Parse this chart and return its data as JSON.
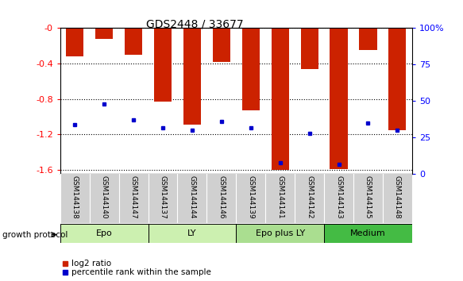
{
  "title": "GDS2448 / 33677",
  "samples": [
    "GSM144138",
    "GSM144140",
    "GSM144147",
    "GSM144137",
    "GSM144144",
    "GSM144146",
    "GSM144139",
    "GSM144141",
    "GSM144142",
    "GSM144143",
    "GSM144145",
    "GSM144148"
  ],
  "log2_ratio": [
    -0.32,
    -0.12,
    -0.3,
    -0.83,
    -1.09,
    -0.38,
    -0.93,
    -1.6,
    -0.46,
    -1.59,
    -0.25,
    -1.15
  ],
  "percentile_rank": [
    0.34,
    0.48,
    0.37,
    0.32,
    0.3,
    0.36,
    0.32,
    0.08,
    0.28,
    0.07,
    0.35,
    0.3
  ],
  "groups": [
    {
      "label": "Epo",
      "indices": [
        0,
        1,
        2
      ],
      "color": "#ccf0b0"
    },
    {
      "label": "LY",
      "indices": [
        3,
        4,
        5
      ],
      "color": "#ccf0b0"
    },
    {
      "label": "Epo plus LY",
      "indices": [
        6,
        7,
        8
      ],
      "color": "#aade90"
    },
    {
      "label": "Medium",
      "indices": [
        9,
        10,
        11
      ],
      "color": "#44bb44"
    }
  ],
  "ylim": [
    -1.65,
    0.0
  ],
  "yticks": [
    0.0,
    -0.4,
    -0.8,
    -1.2,
    -1.6
  ],
  "ytick_labels": [
    "-0",
    "-0.4",
    "-0.8",
    "-1.2",
    "-1.6"
  ],
  "right_yticks": [
    0,
    25,
    50,
    75,
    100
  ],
  "right_ytick_labels": [
    "0",
    "25",
    "50",
    "75",
    "100%"
  ],
  "bar_color": "#cc2200",
  "dot_color": "#0000cc",
  "bar_width": 0.6,
  "growth_protocol_label": "growth protocol",
  "legend_log2": "log2 ratio",
  "legend_pct": "percentile rank within the sample",
  "background_color": "#ffffff"
}
